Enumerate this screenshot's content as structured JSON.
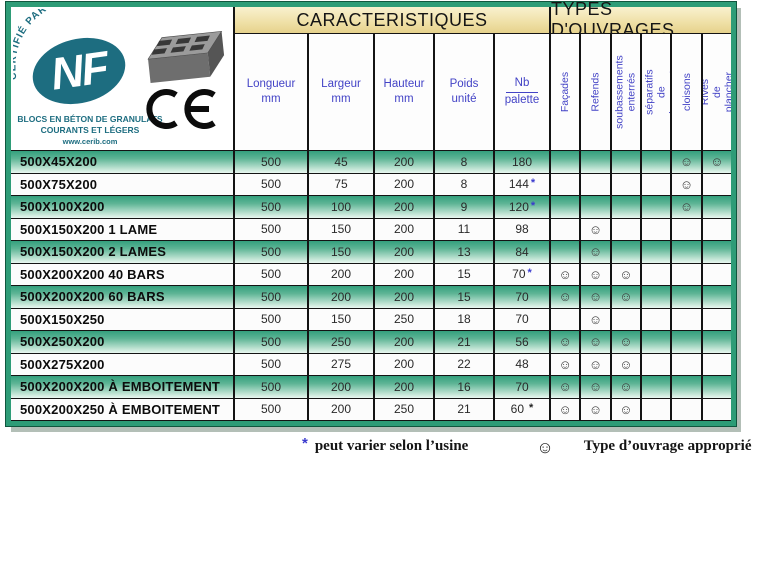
{
  "colors": {
    "frame_green": "#2e9c77",
    "row_green_top": "#33a07d",
    "header_cream": "#efe0a6",
    "header_text_blue": "#4343c6",
    "nf_teal": "#1d6d80",
    "asterisk_blue": "#3a3ace"
  },
  "logo_box": {
    "certified_arc": "CERTIFIÉ PAR CERIB",
    "nf_label": "NF",
    "subtitle_line1": "BLOCS EN BÉTON DE GRANULATS",
    "subtitle_line2": "COURANTS ET LÉGERS",
    "website": "www.cerib.com"
  },
  "table": {
    "caracteristiques_header": "CARACTERISTIQUES",
    "ouvrages_header": "TYPES D'OUVRAGES",
    "char_columns": [
      {
        "line1": "Longueur",
        "line2": "mm"
      },
      {
        "line1": "Largeur",
        "line2": "mm"
      },
      {
        "line1": "Hauteur",
        "line2": "mm"
      },
      {
        "line1": "Poids",
        "line2": "unité"
      },
      {
        "line1": "Nb",
        "line2": "palette"
      }
    ],
    "ouvrage_columns": [
      "Façades",
      "Refends",
      "soubassements\nenterrés",
      "Murs séparatifs\nde logement",
      "cloisons",
      "Rives de plancher"
    ],
    "smiley_char": "☺",
    "rows": [
      {
        "label": "500X45X200",
        "longueur": "500",
        "largeur": "45",
        "hauteur": "200",
        "poids": "8",
        "nb": "180",
        "star": "",
        "star_color": "",
        "smileys": [
          0,
          0,
          0,
          0,
          1,
          1
        ]
      },
      {
        "label": "500X75X200",
        "longueur": "500",
        "largeur": "75",
        "hauteur": "200",
        "poids": "8",
        "nb": "144",
        "star": "*",
        "star_color": "#3a3ace",
        "smileys": [
          0,
          0,
          0,
          0,
          1,
          0
        ]
      },
      {
        "label": "500X100X200",
        "longueur": "500",
        "largeur": "100",
        "hauteur": "200",
        "poids": "9",
        "nb": "120",
        "star": "*",
        "star_color": "#3a3ace",
        "smileys": [
          0,
          0,
          0,
          0,
          1,
          0
        ]
      },
      {
        "label": "500X150X200 1 LAME",
        "longueur": "500",
        "largeur": "150",
        "hauteur": "200",
        "poids": "11",
        "nb": "98",
        "star": "",
        "star_color": "",
        "smileys": [
          0,
          1,
          0,
          0,
          0,
          0
        ]
      },
      {
        "label": "500X150X200 2 LAMES",
        "longueur": "500",
        "largeur": "150",
        "hauteur": "200",
        "poids": "13",
        "nb": "84",
        "star": "",
        "star_color": "",
        "smileys": [
          0,
          1,
          0,
          0,
          0,
          0
        ]
      },
      {
        "label": "500X200X200 40 BARS",
        "longueur": "500",
        "largeur": "200",
        "hauteur": "200",
        "poids": "15",
        "nb": "70",
        "star": "*",
        "star_color": "#3a3ace",
        "smileys": [
          1,
          1,
          1,
          0,
          0,
          0
        ]
      },
      {
        "label": "500X200X200 60 BARS",
        "longueur": "500",
        "largeur": "200",
        "hauteur": "200",
        "poids": "15",
        "nb": "70",
        "star": "",
        "star_color": "",
        "smileys": [
          1,
          1,
          1,
          0,
          0,
          0
        ]
      },
      {
        "label": "500X150X250",
        "longueur": "500",
        "largeur": "150",
        "hauteur": "250",
        "poids": "18",
        "nb": "70",
        "star": "",
        "star_color": "",
        "smileys": [
          0,
          1,
          0,
          0,
          0,
          0
        ]
      },
      {
        "label": "500X250X200",
        "longueur": "500",
        "largeur": "250",
        "hauteur": "200",
        "poids": "21",
        "nb": "56",
        "star": "",
        "star_color": "",
        "smileys": [
          1,
          1,
          1,
          0,
          0,
          0
        ]
      },
      {
        "label": "500X275X200",
        "longueur": "500",
        "largeur": "275",
        "hauteur": "200",
        "poids": "22",
        "nb": "48",
        "star": "",
        "star_color": "",
        "smileys": [
          1,
          1,
          1,
          0,
          0,
          0
        ]
      },
      {
        "label": "500X200X200 À EMBOITEMENT",
        "longueur": "500",
        "largeur": "200",
        "hauteur": "200",
        "poids": "16",
        "nb": "70",
        "star": "",
        "star_color": "",
        "smileys": [
          1,
          1,
          1,
          0,
          0,
          0
        ]
      },
      {
        "label": "500X200X250 À EMBOITEMENT",
        "longueur": "500",
        "largeur": "200",
        "hauteur": "250",
        "poids": "21",
        "nb": "60",
        "star": " *",
        "star_color": "#222222",
        "smileys": [
          1,
          1,
          1,
          0,
          0,
          0
        ]
      }
    ]
  },
  "footer": {
    "star": "*",
    "variance_note": "peut varier selon l’usine",
    "smiley": "☺",
    "appropriate_note": "Type d’ouvrage approprié"
  }
}
